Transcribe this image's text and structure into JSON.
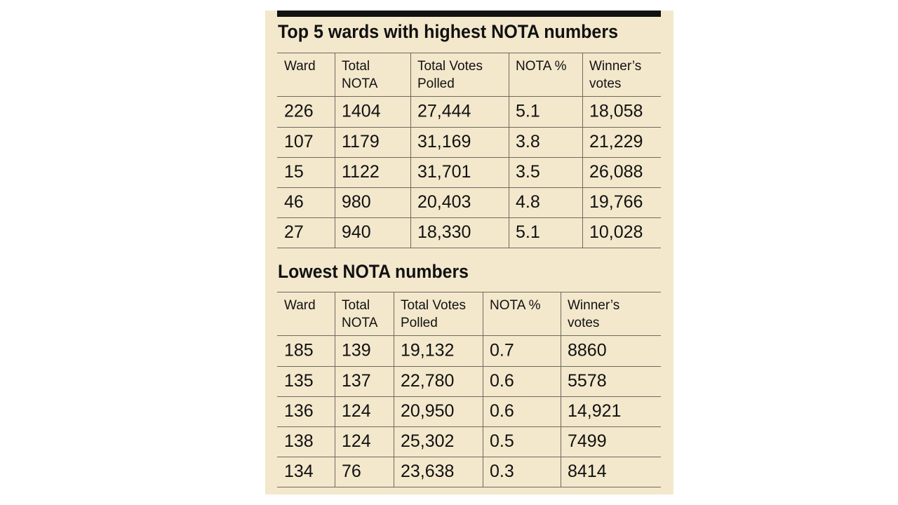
{
  "tables": [
    {
      "title": "Top 5 wards with highest NOTA numbers",
      "headers": [
        [
          "Ward"
        ],
        [
          "Total",
          "NOTA"
        ],
        [
          "Total Votes",
          "Polled"
        ],
        [
          "NOTA %"
        ],
        [
          "Winner’s",
          "votes"
        ]
      ],
      "rows": [
        [
          "226",
          "1404",
          "27,444",
          "5.1",
          "18,058"
        ],
        [
          "107",
          "1179",
          "31,169",
          "3.8",
          "21,229"
        ],
        [
          "15",
          "1122",
          "31,701",
          "3.5",
          "26,088"
        ],
        [
          "46",
          "980",
          "20,403",
          "4.8",
          "19,766"
        ],
        [
          "27",
          "940",
          "18,330",
          "5.1",
          "10,028"
        ]
      ]
    },
    {
      "title": "Lowest NOTA numbers",
      "headers": [
        [
          "Ward"
        ],
        [
          "Total",
          "NOTA"
        ],
        [
          "Total Votes",
          "Polled"
        ],
        [
          "NOTA %"
        ],
        [
          "Winner’s",
          "votes"
        ]
      ],
      "rows": [
        [
          "185",
          "139",
          "19,132",
          "0.7",
          "8860"
        ],
        [
          "135",
          "137",
          "22,780",
          "0.6",
          "5578"
        ],
        [
          "136",
          "124",
          "20,950",
          "0.6",
          "14,921"
        ],
        [
          "138",
          "124",
          "25,302",
          "0.5",
          "7499"
        ],
        [
          "134",
          "76",
          "23,638",
          "0.3",
          "8414"
        ]
      ]
    }
  ]
}
